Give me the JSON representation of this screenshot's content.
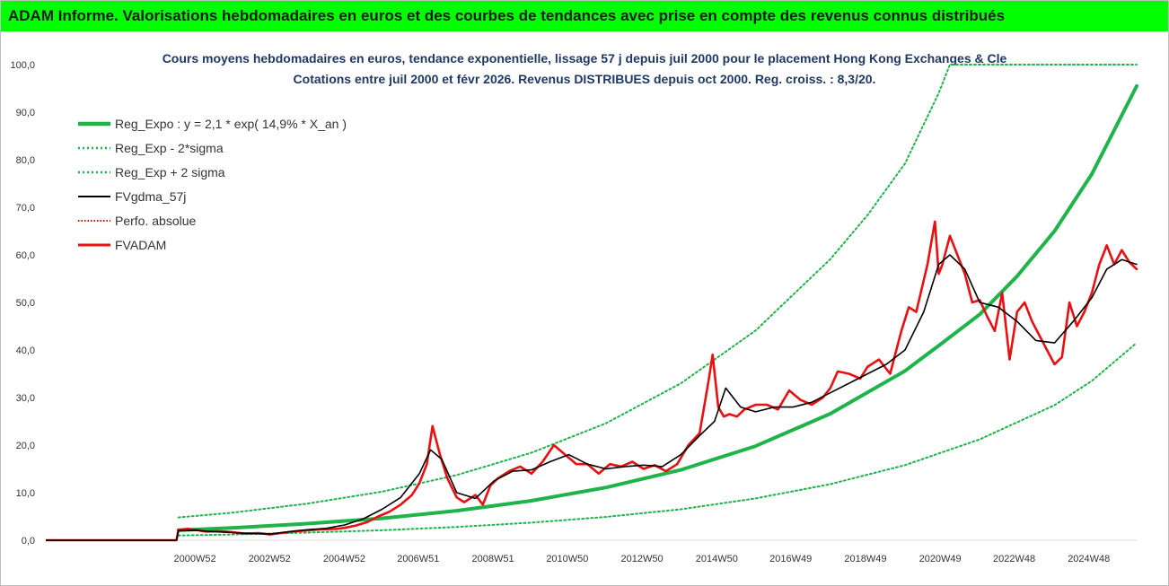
{
  "header": {
    "title": "ADAM Informe. Valorisations hebdomadaires en euros et des courbes de tendances avec prise en compte des revenus connus distribués"
  },
  "colors": {
    "banner": "#00ff00",
    "reg_expo": "#1fb44a",
    "sigma": "#1fb44a",
    "fvgdma": "#000000",
    "perfo": "#e00000",
    "fvadam": "#e81010",
    "title_text": "#1f3864"
  },
  "chart_data": {
    "type": "line",
    "title": "Cours moyens hebdomadaires en euros, tendance exponentielle, lissage 57 j depuis juil 2000 pour le placement Hong Kong Exchanges & Cle",
    "subtitle": "Cotations entre juil 2000 et févr 2026. Revenus DISTRIBUES depuis oct 2000. Reg. croiss. : 8,3/20.",
    "xlabel": "",
    "ylabel": "",
    "ylim": [
      0,
      100
    ],
    "xlim": [
      1997.0,
      2026.2
    ],
    "y_ticks": [
      "0,0",
      "10,0",
      "20,0",
      "30,0",
      "40,0",
      "50,0",
      "60,0",
      "70,0",
      "80,0",
      "90,0",
      "100,0"
    ],
    "x_ticks": [
      {
        "x": 2000.99,
        "label": "2000W52"
      },
      {
        "x": 2002.99,
        "label": "2002W52"
      },
      {
        "x": 2004.99,
        "label": "2004W52"
      },
      {
        "x": 2006.97,
        "label": "2006W51"
      },
      {
        "x": 2008.97,
        "label": "2008W51"
      },
      {
        "x": 2010.96,
        "label": "2010W50"
      },
      {
        "x": 2012.96,
        "label": "2012W50"
      },
      {
        "x": 2014.96,
        "label": "2014W50"
      },
      {
        "x": 2016.94,
        "label": "2016W49"
      },
      {
        "x": 2018.94,
        "label": "2018W49"
      },
      {
        "x": 2020.94,
        "label": "2020W49"
      },
      {
        "x": 2022.92,
        "label": "2022W48"
      },
      {
        "x": 2024.92,
        "label": "2024W48"
      }
    ],
    "grid": false,
    "legend_position": "top-left",
    "series": [
      {
        "name": "Reg_Expo : y = 2,1 * exp( 14,9% * X_an )",
        "style": "solid-thick",
        "x": [
          2000.55,
          2002.0,
          2004.0,
          2006.0,
          2008.0,
          2010.0,
          2012.0,
          2014.0,
          2016.0,
          2018.0,
          2020.0,
          2021.0,
          2022.0,
          2023.0,
          2024.0,
          2025.0,
          2026.2
        ],
        "values": [
          2.1,
          2.6,
          3.5,
          4.6,
          6.2,
          8.3,
          11.1,
          14.8,
          19.8,
          26.6,
          35.6,
          41.5,
          47.5,
          55.5,
          65.0,
          77.0,
          95.5
        ]
      },
      {
        "name": "Reg_Exp - 2*sigma",
        "style": "dotted",
        "x": [
          2000.55,
          2002.0,
          2004.0,
          2006.0,
          2008.0,
          2010.0,
          2012.0,
          2014.0,
          2016.0,
          2018.0,
          2020.0,
          2022.0,
          2024.0,
          2025.0,
          2026.2
        ],
        "values": [
          1.0,
          1.2,
          1.6,
          2.1,
          2.8,
          3.7,
          4.9,
          6.5,
          8.8,
          11.8,
          15.8,
          21.2,
          28.4,
          33.5,
          41.5
        ]
      },
      {
        "name": "Reg_Exp + 2 sigma",
        "style": "dotted",
        "x": [
          2000.55,
          2002.0,
          2004.0,
          2006.0,
          2008.0,
          2010.0,
          2012.0,
          2014.0,
          2016.0,
          2018.0,
          2019.0,
          2020.0,
          2020.9,
          2021.2,
          2021.5,
          2023.5,
          2026.2
        ],
        "values": [
          4.8,
          5.8,
          7.7,
          10.2,
          13.7,
          18.4,
          24.6,
          33.0,
          44.1,
          59.1,
          68.4,
          79.2,
          94.0,
          100.0,
          100.0,
          100.0,
          100.0
        ]
      },
      {
        "name": "FVgdma_57j",
        "style": "solid",
        "x": [
          1997.0,
          2000.5,
          2000.55,
          2001.0,
          2001.5,
          2002.0,
          2002.5,
          2003.0,
          2003.5,
          2004.0,
          2004.5,
          2005.0,
          2005.5,
          2006.0,
          2006.5,
          2007.0,
          2007.3,
          2007.6,
          2008.0,
          2008.5,
          2009.0,
          2009.5,
          2010.0,
          2010.5,
          2011.0,
          2011.5,
          2012.0,
          2012.5,
          2013.0,
          2013.5,
          2014.0,
          2014.5,
          2014.9,
          2015.2,
          2015.6,
          2016.0,
          2016.5,
          2017.0,
          2017.5,
          2018.0,
          2018.5,
          2019.0,
          2019.5,
          2020.0,
          2020.5,
          2020.9,
          2021.2,
          2021.6,
          2022.0,
          2022.5,
          2023.0,
          2023.5,
          2024.0,
          2024.5,
          2025.0,
          2025.4,
          2025.8,
          2026.2
        ],
        "values": [
          0,
          0,
          2.0,
          2.1,
          1.8,
          1.6,
          1.4,
          1.3,
          1.8,
          2.2,
          2.5,
          3.2,
          4.5,
          6.5,
          9.0,
          14.0,
          19.0,
          17.0,
          10.0,
          8.8,
          12.5,
          14.5,
          14.8,
          16.5,
          18.0,
          16.0,
          15.0,
          15.5,
          15.8,
          15.5,
          18.0,
          22.0,
          25.0,
          32.0,
          28.0,
          27.0,
          28.0,
          28.0,
          29.0,
          31.0,
          33.0,
          35.0,
          37.0,
          40.0,
          48.0,
          58.0,
          60.0,
          57.0,
          50.0,
          49.0,
          46.0,
          42.0,
          41.5,
          46.0,
          51.0,
          57.0,
          59.0,
          58.0
        ]
      },
      {
        "name": "Perfo. absolue",
        "style": "dotted",
        "x": [
          1997.0,
          2000.5
        ],
        "values": [
          0,
          0
        ]
      },
      {
        "name": "FVADAM",
        "style": "solid-thick",
        "x": [
          1997.0,
          2000.5,
          2000.55,
          2000.8,
          2001.0,
          2001.3,
          2001.6,
          2002.0,
          2002.3,
          2002.7,
          2003.0,
          2003.3,
          2003.7,
          2004.0,
          2004.4,
          2004.8,
          2005.0,
          2005.3,
          2005.6,
          2005.9,
          2006.2,
          2006.5,
          2006.8,
          2007.0,
          2007.2,
          2007.35,
          2007.55,
          2007.75,
          2008.0,
          2008.2,
          2008.5,
          2008.7,
          2008.9,
          2009.1,
          2009.4,
          2009.7,
          2010.0,
          2010.3,
          2010.6,
          2010.9,
          2011.2,
          2011.5,
          2011.8,
          2012.1,
          2012.4,
          2012.7,
          2013.0,
          2013.3,
          2013.6,
          2013.9,
          2014.2,
          2014.5,
          2014.75,
          2014.85,
          2015.0,
          2015.15,
          2015.3,
          2015.5,
          2015.7,
          2016.0,
          2016.3,
          2016.6,
          2016.9,
          2017.2,
          2017.5,
          2017.8,
          2018.0,
          2018.2,
          2018.5,
          2018.8,
          2019.0,
          2019.3,
          2019.6,
          2019.9,
          2020.1,
          2020.3,
          2020.6,
          2020.8,
          2020.9,
          2021.0,
          2021.2,
          2021.4,
          2021.6,
          2021.8,
          2022.0,
          2022.2,
          2022.4,
          2022.6,
          2022.8,
          2023.0,
          2023.2,
          2023.4,
          2023.6,
          2023.8,
          2024.0,
          2024.2,
          2024.4,
          2024.6,
          2024.8,
          2025.0,
          2025.2,
          2025.4,
          2025.6,
          2025.8,
          2026.0,
          2026.2
        ],
        "values": [
          0,
          0,
          2.2,
          2.4,
          2.2,
          1.8,
          1.9,
          1.7,
          1.4,
          1.5,
          1.2,
          1.5,
          1.9,
          2.1,
          2.3,
          2.4,
          2.6,
          3.1,
          3.8,
          5.0,
          6.0,
          7.5,
          9.5,
          12.0,
          16.0,
          24.0,
          18.0,
          13.0,
          9.0,
          8.0,
          9.5,
          7.5,
          11.5,
          13.0,
          14.5,
          15.5,
          14.0,
          16.5,
          20.0,
          18.0,
          16.0,
          16.0,
          14.0,
          16.0,
          15.5,
          16.5,
          15.0,
          15.8,
          14.5,
          16.0,
          20.0,
          22.5,
          34.0,
          39.0,
          28.0,
          26.0,
          26.5,
          26.0,
          27.5,
          28.5,
          28.5,
          27.5,
          31.5,
          29.5,
          28.5,
          30.0,
          32.0,
          35.5,
          35.0,
          34.0,
          36.5,
          38.0,
          35.0,
          44.0,
          49.0,
          48.0,
          58.0,
          67.0,
          56.0,
          58.0,
          64.0,
          60.0,
          56.0,
          50.0,
          50.5,
          47.0,
          44.0,
          52.0,
          38.0,
          48.0,
          50.0,
          46.0,
          43.0,
          40.0,
          37.0,
          38.5,
          50.0,
          45.0,
          48.0,
          52.0,
          58.0,
          62.0,
          58.0,
          61.0,
          58.5,
          57.0
        ]
      }
    ]
  }
}
